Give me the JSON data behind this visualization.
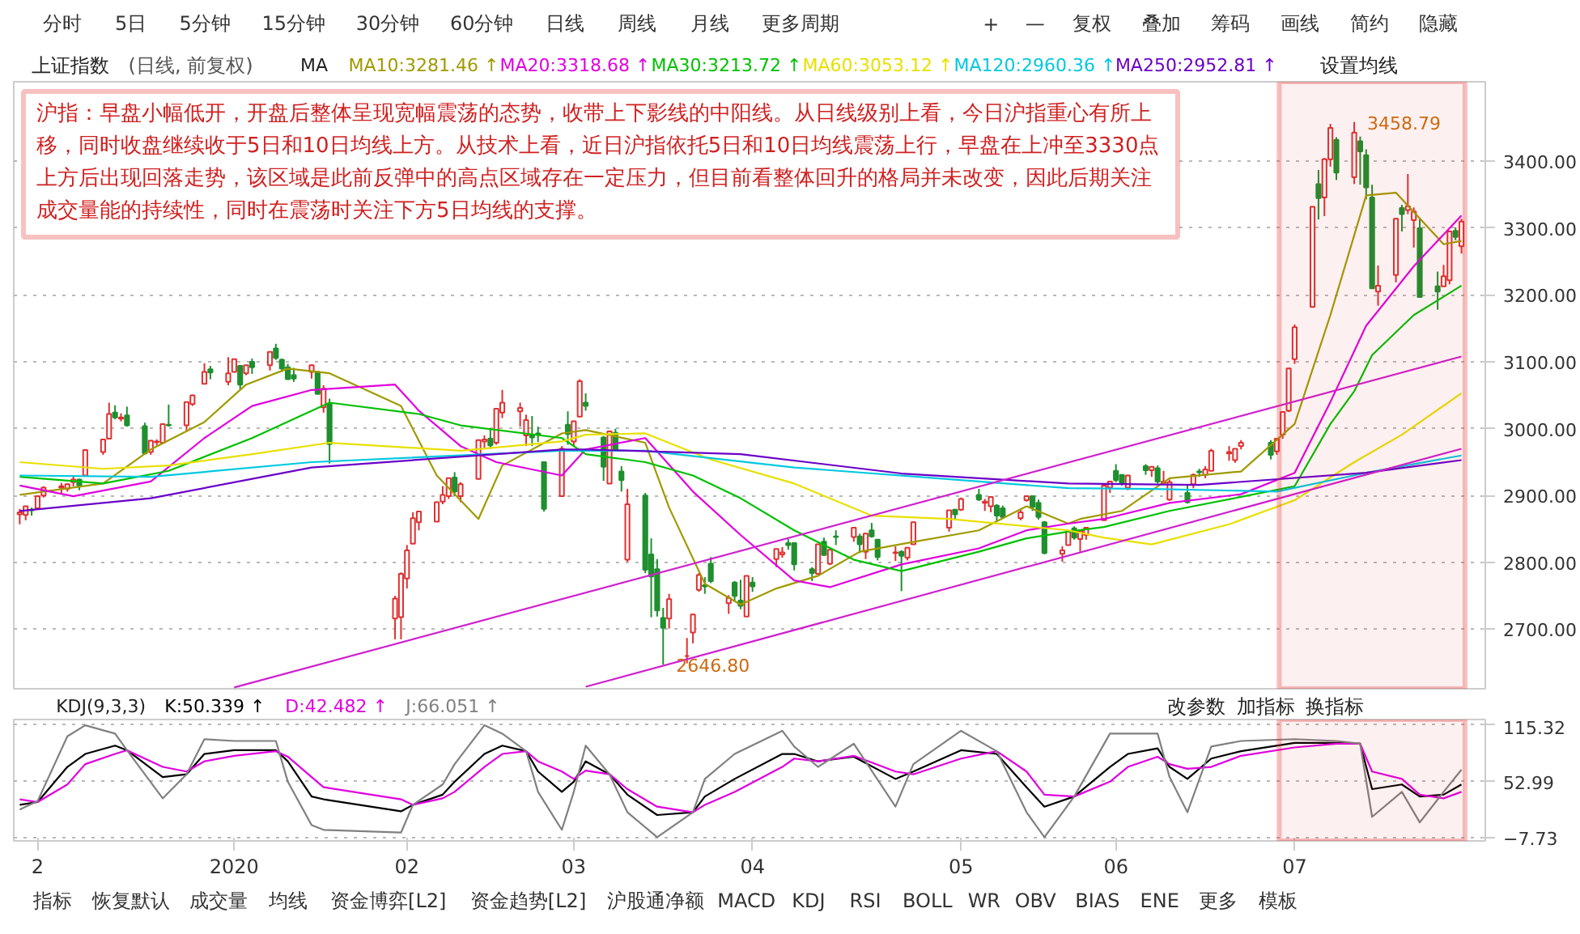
{
  "chart_data": [
    {
      "type": "candlestick",
      "title": "上证指数",
      "subtitle": "(日线, 前复权)",
      "x": [
        "2019-12-02",
        "2019-12-03",
        "2019-12-04",
        "2019-12-05",
        "2019-12-06",
        "2019-12-09",
        "2019-12-10",
        "2019-12-11",
        "2019-12-12",
        "2019-12-13",
        "2019-12-16",
        "2019-12-17",
        "2019-12-18",
        "2019-12-19",
        "2019-12-20",
        "2019-12-23",
        "2019-12-24",
        "2019-12-25",
        "2019-12-26",
        "2019-12-27",
        "2019-12-30",
        "2019-12-31",
        "2020-01-02",
        "2020-01-03",
        "2020-01-06",
        "2020-01-07",
        "2020-01-08",
        "2020-01-09",
        "2020-01-10",
        "2020-01-13",
        "2020-01-14",
        "2020-01-15",
        "2020-01-16",
        "2020-01-17",
        "2020-01-20",
        "2020-01-21",
        "2020-01-22",
        "2020-01-23",
        "2020-02-03",
        "2020-02-04",
        "2020-02-05",
        "2020-02-06",
        "2020-02-07",
        "2020-02-10",
        "2020-02-11",
        "2020-02-12",
        "2020-02-13",
        "2020-02-14",
        "2020-02-17",
        "2020-02-18",
        "2020-02-19",
        "2020-02-20",
        "2020-02-21",
        "2020-02-24",
        "2020-02-25",
        "2020-02-26",
        "2020-02-27",
        "2020-02-28",
        "2020-03-02",
        "2020-03-03",
        "2020-03-04",
        "2020-03-05",
        "2020-03-06",
        "2020-03-09",
        "2020-03-10",
        "2020-03-11",
        "2020-03-12",
        "2020-03-13",
        "2020-03-16",
        "2020-03-17",
        "2020-03-18",
        "2020-03-19",
        "2020-03-20",
        "2020-03-23",
        "2020-03-24",
        "2020-03-25",
        "2020-03-26",
        "2020-03-27",
        "2020-03-30",
        "2020-03-31",
        "2020-04-01",
        "2020-04-02",
        "2020-04-03",
        "2020-04-07",
        "2020-04-08",
        "2020-04-09",
        "2020-04-10",
        "2020-04-13",
        "2020-04-14",
        "2020-04-15",
        "2020-04-16",
        "2020-04-17",
        "2020-04-20",
        "2020-04-21",
        "2020-04-22",
        "2020-04-23",
        "2020-04-24",
        "2020-04-27",
        "2020-04-28",
        "2020-04-29",
        "2020-04-30",
        "2020-05-06",
        "2020-05-07",
        "2020-05-08",
        "2020-05-11",
        "2020-05-12",
        "2020-05-13",
        "2020-05-14",
        "2020-05-15",
        "2020-05-18",
        "2020-05-19",
        "2020-05-20",
        "2020-05-21",
        "2020-05-22",
        "2020-05-25",
        "2020-05-26",
        "2020-05-27",
        "2020-05-28",
        "2020-05-29",
        "2020-06-01",
        "2020-06-02",
        "2020-06-03",
        "2020-06-04",
        "2020-06-05",
        "2020-06-08",
        "2020-06-09",
        "2020-06-10",
        "2020-06-11",
        "2020-06-12",
        "2020-06-15",
        "2020-06-16",
        "2020-06-17",
        "2020-06-18",
        "2020-06-19",
        "2020-06-22",
        "2020-06-23",
        "2020-06-24",
        "2020-06-29",
        "2020-06-30",
        "2020-07-01",
        "2020-07-02",
        "2020-07-03",
        "2020-07-06",
        "2020-07-07",
        "2020-07-08",
        "2020-07-09",
        "2020-07-10",
        "2020-07-13",
        "2020-07-14",
        "2020-07-15",
        "2020-07-16",
        "2020-07-17",
        "2020-07-20",
        "2020-07-21",
        "2020-07-22",
        "2020-07-23",
        "2020-07-24",
        "2020-07-27",
        "2020-07-28",
        "2020-07-29",
        "2020-07-30",
        "2020-07-31"
      ],
      "ohlc": [
        [
          2872,
          2880,
          2857,
          2875
        ],
        [
          2871,
          2884,
          2863,
          2884
        ],
        [
          2879,
          2882,
          2870,
          2878
        ],
        [
          2881,
          2900,
          2880,
          2899
        ],
        [
          2900,
          2914,
          2897,
          2912
        ],
        [
          2912,
          2919,
          2902,
          2914
        ],
        [
          2910,
          2918,
          2906,
          2917
        ],
        [
          2920,
          2930,
          2914,
          2924
        ],
        [
          2924,
          2925,
          2908,
          2915
        ],
        [
          2930,
          2968,
          2929,
          2968
        ],
        [
          2965,
          2984,
          2961,
          2984
        ],
        [
          2985,
          3039,
          2985,
          3022
        ],
        [
          3024,
          3035,
          3014,
          3017
        ],
        [
          3015,
          3023,
          3011,
          3017
        ],
        [
          3020,
          3033,
          3003,
          3005
        ],
        [
          3004,
          3009,
          2962,
          2963
        ],
        [
          2965,
          2983,
          2961,
          2982
        ],
        [
          2980,
          2984,
          2975,
          2981
        ],
        [
          2979,
          3008,
          2979,
          3007
        ],
        [
          3006,
          3036,
          3003,
          3005
        ],
        [
          3005,
          3040,
          2996,
          3040
        ],
        [
          3037,
          3051,
          3034,
          3050
        ],
        [
          3067,
          3098,
          3067,
          3085
        ],
        [
          3089,
          3094,
          3074,
          3084
        ],
        [
          3070,
          3107,
          3065,
          3083
        ],
        [
          3085,
          3105,
          3084,
          3104
        ],
        [
          3094,
          3095,
          3059,
          3066
        ],
        [
          3083,
          3095,
          3080,
          3095
        ],
        [
          3100,
          3105,
          3082,
          3092
        ],
        [
          3095,
          3115,
          3087,
          3115
        ],
        [
          3120,
          3127,
          3103,
          3106
        ],
        [
          3103,
          3105,
          3085,
          3090
        ],
        [
          3092,
          3097,
          3074,
          3074
        ],
        [
          3080,
          3091,
          3070,
          3075
        ],
        [
          3085,
          3096,
          3075,
          3095
        ],
        [
          3085,
          3086,
          3052,
          3052
        ],
        [
          3032,
          3065,
          3024,
          3060
        ],
        [
          3037,
          3045,
          2948,
          2977
        ],
        [
          2716,
          2750,
          2685,
          2746
        ],
        [
          2718,
          2785,
          2685,
          2783
        ],
        [
          2776,
          2826,
          2761,
          2818
        ],
        [
          2828,
          2875,
          2828,
          2866
        ],
        [
          2860,
          2876,
          2848,
          2876
        ],
        [
          2861,
          2891,
          2861,
          2890
        ],
        [
          2891,
          2914,
          2887,
          2901
        ],
        [
          2899,
          2926,
          2895,
          2926
        ],
        [
          2927,
          2935,
          2899,
          2906
        ],
        [
          2899,
          2920,
          2890,
          2917
        ],
        [
          2925,
          2983,
          2924,
          2983
        ],
        [
          2981,
          2990,
          2970,
          2984
        ],
        [
          2985,
          3000,
          2970,
          2975
        ],
        [
          2979,
          3031,
          2976,
          3030
        ],
        [
          3024,
          3058,
          3016,
          3039
        ],
        [
          3026,
          3039,
          3003,
          3031
        ],
        [
          2990,
          3021,
          2974,
          3013
        ],
        [
          2991,
          3019,
          2974,
          2987
        ],
        [
          2993,
          3003,
          2980,
          2991
        ],
        [
          2950,
          2950,
          2876,
          2880
        ],
        [
          2899,
          2974,
          2899,
          2970
        ],
        [
          3006,
          3026,
          2976,
          2992
        ],
        [
          2981,
          3012,
          2974,
          3011
        ],
        [
          3018,
          3074,
          3018,
          3071
        ],
        [
          3039,
          3053,
          3027,
          3034
        ],
        [
          2987,
          2989,
          2922,
          2943
        ],
        [
          2918,
          2997,
          2918,
          2996
        ],
        [
          2994,
          3000,
          2968,
          2968
        ],
        [
          2936,
          2944,
          2906,
          2923
        ],
        [
          2804,
          2910,
          2801,
          2887
        ],
        [
          2900,
          2904,
          2784,
          2789
        ],
        [
          2812,
          2836,
          2718,
          2779
        ],
        [
          2790,
          2805,
          2719,
          2728
        ],
        [
          2717,
          2732,
          2646.8,
          2702
        ],
        [
          2716,
          2753,
          2701,
          2745
        ],
        [
          2660,
          2687,
          2649,
          2660
        ],
        [
          2695,
          2723,
          2679,
          2722
        ],
        [
          2759,
          2784,
          2756,
          2781
        ],
        [
          2766,
          2778,
          2753,
          2764
        ],
        [
          2798,
          2808,
          2769,
          2772
        ],
        [
          2739,
          2751,
          2723,
          2747
        ],
        [
          2770,
          2772,
          2743,
          2750
        ],
        [
          2743,
          2774,
          2730,
          2735
        ],
        [
          2719,
          2780,
          2719,
          2780
        ],
        [
          2770,
          2778,
          2756,
          2764
        ],
        [
          2805,
          2820,
          2793,
          2820
        ],
        [
          2812,
          2823,
          2807,
          2815
        ],
        [
          2829,
          2835,
          2819,
          2826
        ],
        [
          2829,
          2830,
          2788,
          2797
        ],
        [
          2790,
          2793,
          2772,
          2784
        ],
        [
          2783,
          2827,
          2783,
          2827
        ],
        [
          2831,
          2837,
          2810,
          2811
        ],
        [
          2798,
          2819,
          2796,
          2819
        ],
        [
          2839,
          2848,
          2826,
          2838
        ],
        [
          2838,
          2853,
          2831,
          2852
        ],
        [
          2839,
          2843,
          2814,
          2827
        ],
        [
          2816,
          2844,
          2805,
          2843
        ],
        [
          2848,
          2859,
          2837,
          2839
        ],
        [
          2834,
          2835,
          2803,
          2808
        ],
        [
          2814,
          2824,
          2802,
          2815
        ],
        [
          2816,
          2818,
          2757,
          2810
        ],
        [
          2807,
          2823,
          2803,
          2822
        ],
        [
          2827,
          2861,
          2827,
          2860
        ],
        [
          2852,
          2878,
          2846,
          2878
        ],
        [
          2879,
          2880,
          2863,
          2872
        ],
        [
          2879,
          2897,
          2877,
          2895
        ],
        [
          2901,
          2910,
          2892,
          2894
        ],
        [
          2889,
          2895,
          2877,
          2891
        ],
        [
          2884,
          2898,
          2875,
          2898
        ],
        [
          2885,
          2887,
          2862,
          2870
        ],
        [
          2881,
          2885,
          2866,
          2868
        ],
        [
          2866,
          2880,
          2863,
          2875
        ],
        [
          2893,
          2899,
          2891,
          2899
        ],
        [
          2899,
          2900,
          2877,
          2883
        ],
        [
          2889,
          2894,
          2864,
          2868
        ],
        [
          2860,
          2862,
          2812,
          2814
        ],
        [
          2813,
          2824,
          2801,
          2818
        ],
        [
          2826,
          2847,
          2826,
          2846
        ],
        [
          2851,
          2854,
          2834,
          2837
        ],
        [
          2835,
          2849,
          2816,
          2847
        ],
        [
          2841,
          2853,
          2834,
          2852
        ],
        [
          2863,
          2915,
          2863,
          2915
        ],
        [
          2912,
          2922,
          2904,
          2921
        ],
        [
          2937,
          2947,
          2920,
          2923
        ],
        [
          2931,
          2931,
          2915,
          2919
        ],
        [
          2912,
          2931,
          2908,
          2930
        ],
        [
          2944,
          2947,
          2931,
          2938
        ],
        [
          2938,
          2944,
          2928,
          2943
        ],
        [
          2941,
          2945,
          2918,
          2921
        ],
        [
          2919,
          2937,
          2917,
          2921
        ],
        [
          2894,
          2924,
          2892,
          2920
        ],
        [
          2904,
          2915,
          2888,
          2890
        ],
        [
          2917,
          2933,
          2911,
          2931
        ],
        [
          2936,
          2940,
          2928,
          2935
        ],
        [
          2931,
          2944,
          2926,
          2939
        ],
        [
          2937,
          2970,
          2937,
          2967
        ],
        [
          2963,
          2974,
          2952,
          2965
        ],
        [
          2953,
          2970,
          2949,
          2970
        ],
        [
          2974,
          2983,
          2969,
          2979
        ],
        [
          2979,
          2983,
          2954,
          2961
        ],
        [
          2966,
          2985,
          2961,
          2985
        ],
        [
          2991,
          3025,
          2985,
          3025
        ],
        [
          3027,
          3091,
          3025,
          3090
        ],
        [
          3104,
          3156,
          3097,
          3152
        ],
        [
          3182,
          3332,
          3182,
          3332
        ],
        [
          3366,
          3387,
          3313,
          3345
        ],
        [
          3346,
          3405,
          3318,
          3403
        ],
        [
          3403,
          3456,
          3392,
          3450
        ],
        [
          3432,
          3436,
          3372,
          3383
        ],
        [
          3376,
          3458.79,
          3366,
          3443
        ],
        [
          3430,
          3437,
          3365,
          3415
        ],
        [
          3409,
          3418,
          3343,
          3361
        ],
        [
          3346,
          3365,
          3210,
          3210
        ],
        [
          3205,
          3244,
          3184,
          3214
        ],
        [
          3230,
          3315,
          3219,
          3314
        ],
        [
          3330,
          3335,
          3295,
          3321
        ],
        [
          3327,
          3381,
          3321,
          3333
        ],
        [
          3312,
          3331,
          3271,
          3325
        ],
        [
          3300,
          3315,
          3196,
          3197
        ],
        [
          3213,
          3235,
          3178,
          3205
        ],
        [
          3213,
          3245,
          3213,
          3228
        ],
        [
          3222,
          3296,
          3216,
          3295
        ],
        [
          3296,
          3301,
          3282,
          3287
        ],
        [
          3273,
          3314,
          3262,
          3310
        ]
      ],
      "series": [
        {
          "type": "line",
          "name": "MA10:3281.46 ↑",
          "color": "#a09a00",
          "x": [
            "2019-12-02",
            "2019-12-16",
            "2019-12-24",
            "2020-01-02",
            "2020-01-09",
            "2020-01-16",
            "2020-01-23",
            "2020-02-04",
            "2020-02-10",
            "2020-02-17",
            "2020-02-21",
            "2020-03-02",
            "2020-03-06",
            "2020-03-16",
            "2020-03-20",
            "2020-03-26",
            "2020-04-01",
            "2020-04-07",
            "2020-04-14",
            "2020-04-21",
            "2020-04-29",
            "2020-05-11",
            "2020-05-19",
            "2020-05-26",
            "2020-05-28",
            "2020-06-04",
            "2020-06-12",
            "2020-06-24",
            "2020-07-03",
            "2020-07-09",
            "2020-07-15",
            "2020-07-20",
            "2020-07-23",
            "2020-07-28",
            "2020-07-31"
          ],
          "values": [
            2901,
            2918,
            2969,
            3010,
            3066,
            3090,
            3083,
            3034,
            2930,
            2865,
            2945,
            2993,
            2998,
            2979,
            2882,
            2768,
            2737,
            2761,
            2780,
            2816,
            2829,
            2848,
            2884,
            2858,
            2865,
            2877,
            2926,
            2936,
            3007,
            3170,
            3349,
            3353,
            3324,
            3276,
            3281
          ]
        },
        {
          "type": "line",
          "name": "MA20:3318.68 ↑",
          "color": "#e000e0",
          "x": [
            "2019-12-02",
            "2019-12-11",
            "2019-12-24",
            "2020-01-02",
            "2020-01-10",
            "2020-01-20",
            "2020-02-03",
            "2020-02-07",
            "2020-02-14",
            "2020-02-20",
            "2020-03-02",
            "2020-03-06",
            "2020-03-16",
            "2020-03-24",
            "2020-04-01",
            "2020-04-10",
            "2020-04-16",
            "2020-04-28",
            "2020-05-11",
            "2020-05-19",
            "2020-05-26",
            "2020-06-01",
            "2020-06-12",
            "2020-06-24",
            "2020-07-03",
            "2020-07-09",
            "2020-07-15",
            "2020-07-23",
            "2020-07-31"
          ],
          "values": [
            2915,
            2899,
            2921,
            2986,
            3034,
            3058,
            3066,
            3027,
            2974,
            2950,
            2930,
            2969,
            2986,
            2906,
            2841,
            2773,
            2763,
            2797,
            2821,
            2848,
            2858,
            2865,
            2889,
            2902,
            2934,
            3040,
            3154,
            3243,
            3319
          ]
        },
        {
          "type": "line",
          "name": "MA30:3213.72 ↑",
          "color": "#00c000",
          "x": [
            "2019-12-02",
            "2019-12-16",
            "2019-12-27",
            "2020-01-10",
            "2020-01-23",
            "2020-02-07",
            "2020-02-14",
            "2020-03-02",
            "2020-03-06",
            "2020-03-16",
            "2020-03-24",
            "2020-04-01",
            "2020-04-10",
            "2020-04-20",
            "2020-04-28",
            "2020-05-11",
            "2020-05-19",
            "2020-05-26",
            "2020-06-01",
            "2020-06-12",
            "2020-06-24",
            "2020-07-03",
            "2020-07-09",
            "2020-07-13",
            "2020-07-16",
            "2020-07-23",
            "2020-07-31"
          ],
          "values": [
            2928,
            2918,
            2937,
            2986,
            3039,
            3022,
            3005,
            2986,
            2962,
            2950,
            2930,
            2896,
            2848,
            2804,
            2787,
            2816,
            2836,
            2846,
            2853,
            2877,
            2898,
            2914,
            3007,
            3056,
            3110,
            3170,
            3214
          ]
        },
        {
          "type": "line",
          "name": "MA60:3053.12 ↑",
          "color": "#e8e000",
          "x": [
            "2019-12-02",
            "2019-12-16",
            "2019-12-27",
            "2020-01-10",
            "2020-01-23",
            "2020-02-14",
            "2020-03-02",
            "2020-03-06",
            "2020-03-16",
            "2020-03-27",
            "2020-04-10",
            "2020-04-23",
            "2020-05-06",
            "2020-05-26",
            "2020-06-01",
            "2020-06-09",
            "2020-06-22",
            "2020-07-03",
            "2020-07-13",
            "2020-07-21",
            "2020-07-31"
          ],
          "values": [
            2950,
            2940,
            2945,
            2962,
            2979,
            2967,
            2981,
            2991,
            2993,
            2954,
            2918,
            2870,
            2865,
            2848,
            2837,
            2827,
            2857,
            2893,
            2950,
            2991,
            3053
          ]
        },
        {
          "type": "line",
          "name": "MA120:2960.36 ↑",
          "color": "#00c8e0",
          "x": [
            "2019-12-02",
            "2019-12-24",
            "2020-01-20",
            "2020-03-02",
            "2020-03-16",
            "2020-04-10",
            "2020-05-11",
            "2020-05-26",
            "2020-06-09",
            "2020-06-30",
            "2020-07-15",
            "2020-07-31"
          ],
          "values": [
            2930,
            2928,
            2950,
            2967,
            2967,
            2942,
            2921,
            2911,
            2910,
            2906,
            2934,
            2960
          ]
        },
        {
          "type": "line",
          "name": "MA250:2952.81 ↑",
          "color": "#6a00c8",
          "x": [
            "2019-12-02",
            "2019-12-24",
            "2020-01-20",
            "2020-03-02",
            "2020-03-06",
            "2020-04-01",
            "2020-04-28",
            "2020-05-26",
            "2020-06-17",
            "2020-07-15",
            "2020-07-31"
          ],
          "values": [
            2877,
            2896,
            2942,
            2969,
            2969,
            2962,
            2933,
            2918,
            2916,
            2934,
            2953
          ]
        },
        {
          "type": "line",
          "color": "#d020d0",
          "x": [
            "2020-01-07",
            "2020-07-31"
          ],
          "values": [
            2613,
            3108
          ]
        },
        {
          "type": "line",
          "color": "#d020d0",
          "x": [
            "2020-03-06",
            "2020-07-31"
          ],
          "values": [
            2614,
            2970
          ]
        }
      ],
      "xlim": [
        "2019-12-01",
        "2020-08-04"
      ],
      "ylim": [
        2611,
        3519
      ],
      "yticks": [
        {
          "value": 2700,
          "label": "2700.00"
        },
        {
          "value": 2800,
          "label": "2800.00"
        },
        {
          "value": 2900,
          "label": "2900.00"
        },
        {
          "value": 3000,
          "label": "3000.00"
        },
        {
          "value": 3100,
          "label": "3100.00"
        },
        {
          "value": 3200,
          "label": "3200.00"
        },
        {
          "value": 3300,
          "label": "3300.00"
        },
        {
          "value": 3400,
          "label": "3400.00"
        }
      ],
      "tick_labels": "y",
      "grid": "y",
      "bands": [
        {
          "axis": "x",
          "from": "2020-07-01",
          "to": "2020-07-31",
          "color": "#e83030"
        }
      ],
      "annotations": [
        "沪指：早盘小幅低开，开盘后整体呈现宽幅震荡的态势，收带上下影线的中阳线。从日线级别上看，今日沪指重心有所上移，同时收盘继续收于5日和10日均线上方。从技术上看，近日沪指依托5日和10日均线震荡上行，早盘在上冲至3330点上方后出现回落走势，该区域是此前反弹中的高点区域存在一定压力，但目前看整体回升的格局并未改变，因此后期关注成交量能的持续性，同时在震荡时关注下方5日均线的支撑。",
        {
          "text": "3458.79",
          "x": "2020-07-13",
          "y": 3458.79
        },
        {
          "text": "2646.80",
          "x": "2020-03-19",
          "y": 2646.8
        },
        "MA",
        "设置均线",
        "分时",
        "5日",
        "5分钟",
        "15分钟",
        "30分钟",
        "60分钟",
        "日线",
        "周线",
        "月线",
        "更多周期",
        "+",
        "—",
        "复权",
        "叠加",
        "筹码",
        "画线",
        "简约",
        "隐藏"
      ]
    },
    {
      "type": "line",
      "title": "KDJ(9,3,3)",
      "series": [
        {
          "name": "K:50.339 ↑",
          "color": "#000000",
          "x": [
            "2019-12-02",
            "2019-12-05",
            "2019-12-10",
            "2019-12-13",
            "2019-12-18",
            "2019-12-20",
            "2019-12-26",
            "2019-12-30",
            "2020-01-02",
            "2020-01-07",
            "2020-01-14",
            "2020-01-16",
            "2020-01-20",
            "2020-01-22",
            "2020-02-04",
            "2020-02-06",
            "2020-02-11",
            "2020-02-13",
            "2020-02-18",
            "2020-02-21",
            "2020-02-25",
            "2020-02-27",
            "2020-03-02",
            "2020-03-04",
            "2020-03-06",
            "2020-03-10",
            "2020-03-13",
            "2020-03-18",
            "2020-03-24",
            "2020-03-26",
            "2020-03-31",
            "2020-04-08",
            "2020-04-10",
            "2020-04-14",
            "2020-04-20",
            "2020-04-27",
            "2020-04-30",
            "2020-05-08",
            "2020-05-14",
            "2020-05-19",
            "2020-05-22",
            "2020-05-27",
            "2020-06-02",
            "2020-06-05",
            "2020-06-10",
            "2020-06-12",
            "2020-06-15",
            "2020-06-19",
            "2020-06-24",
            "2020-07-03",
            "2020-07-10",
            "2020-07-14",
            "2020-07-16",
            "2020-07-21",
            "2020-07-24",
            "2020-07-28",
            "2020-07-31"
          ],
          "values": [
            28,
            31,
            69,
            83,
            92,
            87,
            58,
            61,
            83,
            87,
            87,
            75,
            37,
            34,
            21,
            28,
            39,
            53,
            83,
            92,
            86,
            64,
            42,
            53,
            75,
            61,
            39,
            17,
            20,
            37,
            56,
            83,
            83,
            75,
            80,
            56,
            64,
            87,
            83,
            47,
            26,
            37,
            69,
            83,
            89,
            69,
            56,
            78,
            86,
            95,
            95,
            94,
            45,
            50,
            37,
            39,
            50
          ]
        },
        {
          "name": "D:42.482 ↑",
          "color": "#e000e0",
          "x": [
            "2019-12-02",
            "2019-12-05",
            "2019-12-10",
            "2019-12-13",
            "2019-12-18",
            "2019-12-20",
            "2019-12-26",
            "2019-12-30",
            "2020-01-02",
            "2020-01-07",
            "2020-01-14",
            "2020-01-16",
            "2020-01-20",
            "2020-01-22",
            "2020-02-04",
            "2020-02-06",
            "2020-02-11",
            "2020-02-13",
            "2020-02-18",
            "2020-02-21",
            "2020-02-25",
            "2020-02-27",
            "2020-03-02",
            "2020-03-04",
            "2020-03-06",
            "2020-03-10",
            "2020-03-13",
            "2020-03-18",
            "2020-03-24",
            "2020-03-26",
            "2020-03-31",
            "2020-04-08",
            "2020-04-10",
            "2020-04-14",
            "2020-04-20",
            "2020-04-27",
            "2020-04-30",
            "2020-05-08",
            "2020-05-14",
            "2020-05-19",
            "2020-05-22",
            "2020-05-27",
            "2020-06-02",
            "2020-06-05",
            "2020-06-10",
            "2020-06-12",
            "2020-06-15",
            "2020-06-19",
            "2020-06-24",
            "2020-07-03",
            "2020-07-10",
            "2020-07-14",
            "2020-07-16",
            "2020-07-21",
            "2020-07-24",
            "2020-07-28",
            "2020-07-31"
          ],
          "values": [
            34,
            31,
            50,
            72,
            83,
            87,
            69,
            64,
            75,
            81,
            86,
            80,
            58,
            47,
            34,
            28,
            35,
            42,
            69,
            83,
            86,
            75,
            64,
            56,
            65,
            61,
            45,
            26,
            20,
            28,
            42,
            69,
            78,
            75,
            81,
            64,
            61,
            78,
            86,
            64,
            39,
            37,
            53,
            69,
            80,
            72,
            67,
            69,
            81,
            90,
            94,
            94,
            64,
            56,
            39,
            35,
            42
          ]
        },
        {
          "name": "J:66.051 ↑",
          "color": "#808080",
          "x": [
            "2019-12-02",
            "2019-12-05",
            "2019-12-10",
            "2019-12-13",
            "2019-12-18",
            "2019-12-20",
            "2019-12-26",
            "2019-12-30",
            "2020-01-02",
            "2020-01-07",
            "2020-01-14",
            "2020-01-16",
            "2020-01-20",
            "2020-01-22",
            "2020-02-04",
            "2020-02-06",
            "2020-02-11",
            "2020-02-13",
            "2020-02-18",
            "2020-02-21",
            "2020-02-25",
            "2020-02-27",
            "2020-03-02",
            "2020-03-04",
            "2020-03-06",
            "2020-03-10",
            "2020-03-13",
            "2020-03-18",
            "2020-03-24",
            "2020-03-26",
            "2020-03-31",
            "2020-04-08",
            "2020-04-10",
            "2020-04-14",
            "2020-04-20",
            "2020-04-27",
            "2020-04-30",
            "2020-05-08",
            "2020-05-14",
            "2020-05-19",
            "2020-05-22",
            "2020-05-27",
            "2020-06-02",
            "2020-06-05",
            "2020-06-10",
            "2020-06-12",
            "2020-06-15",
            "2020-06-19",
            "2020-06-24",
            "2020-07-03",
            "2020-07-10",
            "2020-07-14",
            "2020-07-16",
            "2020-07-21",
            "2020-07-24",
            "2020-07-28",
            "2020-07-31"
          ],
          "values": [
            23,
            32,
            102,
            114,
            105,
            87,
            35,
            61,
            99,
            97,
            97,
            53,
            6,
            1,
            -2,
            28,
            50,
            72,
            114,
            105,
            86,
            42,
            1,
            42,
            92,
            61,
            20,
            -7,
            20,
            56,
            83,
            108,
            91,
            69,
            94,
            26,
            72,
            108,
            86,
            20,
            -7,
            37,
            105,
            105,
            105,
            58,
            20,
            91,
            97,
            99,
            97,
            94,
            15,
            42,
            9,
            42,
            66
          ]
        }
      ],
      "xlim": [
        "2019-12-01",
        "2020-08-04"
      ],
      "xticks": [
        {
          "value": "2019-12-05",
          "label": "2"
        },
        {
          "value": "2020-01-07",
          "label": "2020"
        },
        {
          "value": "2020-02-05",
          "label": "02"
        },
        {
          "value": "2020-03-04",
          "label": "03"
        },
        {
          "value": "2020-04-03",
          "label": "04"
        },
        {
          "value": "2020-05-08",
          "label": "05"
        },
        {
          "value": "2020-06-03",
          "label": "06"
        },
        {
          "value": "2020-07-03",
          "label": "07"
        }
      ],
      "ylim": [
        -11,
        120.2
      ],
      "yticks": [
        115.32,
        52.99,
        -7.73
      ],
      "grid": "y",
      "bands": [
        {
          "axis": "x",
          "from": "2020-07-01",
          "to": "2020-07-31",
          "color": "#e83030"
        }
      ],
      "annotations": [
        "改参数",
        "加指标",
        "换指标",
        "指标",
        "恢复默认",
        "成交量",
        "均线",
        "资金博弈[L2]",
        "资金趋势[L2]",
        "沪股通净额",
        "MACD",
        "KDJ",
        "RSI",
        "BOLL",
        "WR",
        "OBV",
        "BIAS",
        "ENE",
        "更多",
        "模板"
      ]
    }
  ]
}
